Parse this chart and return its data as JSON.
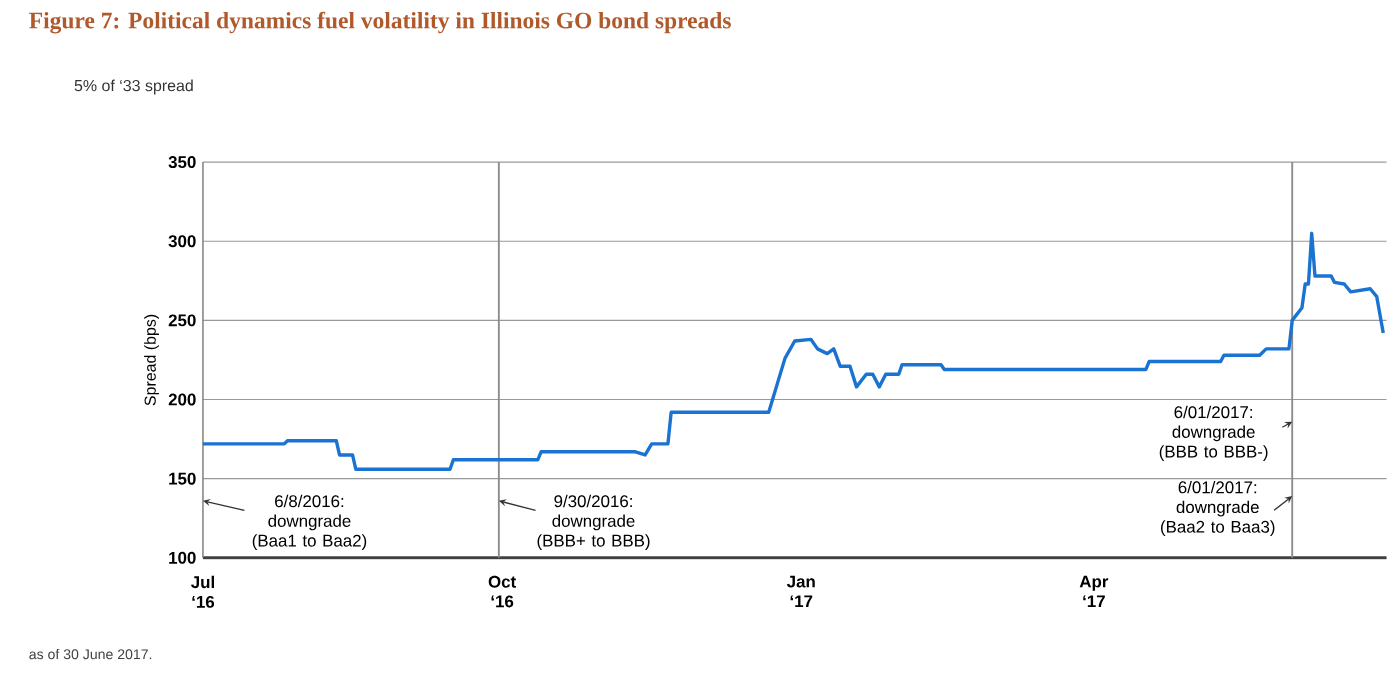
{
  "chart_data": {
    "type": "line",
    "title": "Figure 7: Political dynamics fuel volatility in Illinois GO bond spreads",
    "subtitle": "5% of ‘33 spread",
    "ylabel": "Spread (bps)",
    "x": [
      "2016-07-01",
      "2016-07-26",
      "2016-07-27",
      "2016-08-11",
      "2016-08-12",
      "2016-08-16",
      "2016-08-17",
      "2016-09-15",
      "2016-09-16",
      "2016-10-12",
      "2016-10-13",
      "2016-11-11",
      "2016-11-14",
      "2016-11-16",
      "2016-11-21",
      "2016-11-22",
      "2016-12-22",
      "2016-12-27",
      "2016-12-30",
      "2017-01-04",
      "2017-01-06",
      "2017-01-09",
      "2017-01-11",
      "2017-01-13",
      "2017-01-16",
      "2017-01-18",
      "2017-01-21",
      "2017-01-23",
      "2017-01-25",
      "2017-01-27",
      "2017-01-31",
      "2017-02-01",
      "2017-02-13",
      "2017-02-14",
      "2017-04-17",
      "2017-04-18",
      "2017-05-10",
      "2017-05-11",
      "2017-05-22",
      "2017-05-24",
      "2017-05-31",
      "2017-06-01",
      "2017-06-04",
      "2017-06-05",
      "2017-06-06",
      "2017-06-07",
      "2017-06-08",
      "2017-06-13",
      "2017-06-14",
      "2017-06-17",
      "2017-06-19",
      "2017-06-25",
      "2017-06-27",
      "2017-06-29"
    ],
    "series": [
      {
        "color": "#1a73d0",
        "values": [
          172,
          172,
          174,
          174,
          165,
          165,
          156,
          156,
          162,
          162,
          167,
          167,
          165,
          172,
          172,
          192,
          192,
          226,
          237,
          238,
          232,
          229,
          232,
          221,
          221,
          208,
          216,
          216,
          208,
          216,
          216,
          222,
          222,
          219,
          219,
          224,
          224,
          228,
          228,
          232,
          232,
          250,
          258,
          273,
          273,
          305,
          278,
          278,
          274,
          273,
          268,
          270,
          265,
          242
        ]
      }
    ],
    "xlim": [
      "2016-07-01",
      "2017-06-30"
    ],
    "xticks": [
      {
        "value": "2016-07-01",
        "label": "Jul ‘16"
      },
      {
        "value": "2016-10-01",
        "label": "Oct ‘16"
      },
      {
        "value": "2017-01-01",
        "label": "Jan ‘17"
      },
      {
        "value": "2017-04-01",
        "label": "Apr ‘17"
      }
    ],
    "ylim": [
      100,
      350
    ],
    "yticks": [
      100,
      150,
      200,
      250,
      300,
      350
    ],
    "grid": "y",
    "ref_lines": [
      {
        "axis": "x",
        "value": "2016-09-30",
        "color": "#8c8c8c"
      },
      {
        "axis": "x",
        "value": "2017-06-01",
        "color": "#8c8c8c"
      }
    ],
    "annotations": [
      {
        "text": "6/8/2016: downgrade (Baa1 to Baa2)",
        "x": "2016-07-01",
        "y": 136
      },
      {
        "text": "9/30/2016: downgrade (BBB+ to BBB)",
        "x": "2016-09-30",
        "y": 136
      },
      {
        "text": "6/01/2017: downgrade (BBB to BBB-)",
        "x": "2017-06-01",
        "y": 186
      },
      {
        "text": "6/01/2017: downgrade (Baa2 to Baa3)",
        "x": "2017-06-01",
        "y": 139
      },
      "as of 30 June 2017."
    ]
  }
}
